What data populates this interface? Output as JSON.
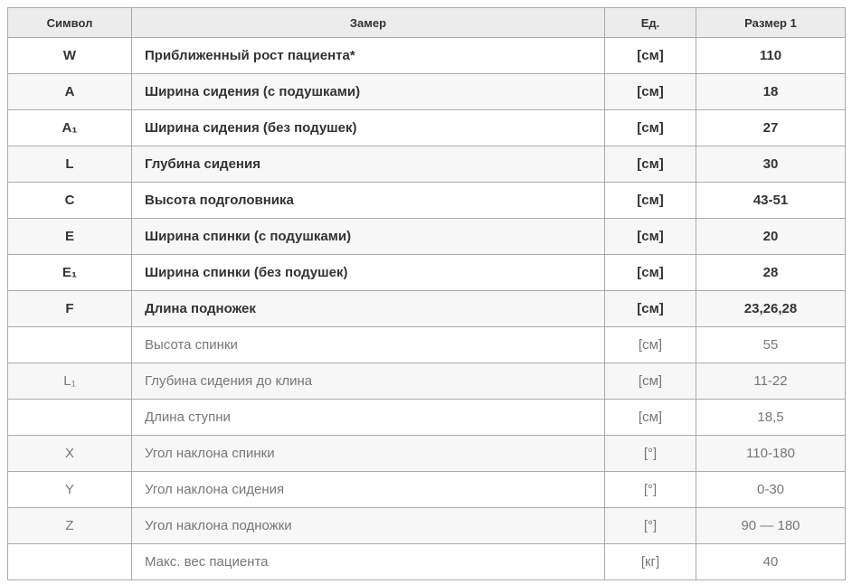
{
  "table": {
    "columns": [
      {
        "key": "symbol",
        "label": "Символ"
      },
      {
        "key": "measure",
        "label": "Замер"
      },
      {
        "key": "unit",
        "label": "Ед."
      },
      {
        "key": "size1",
        "label": "Размер 1"
      }
    ],
    "rows": [
      {
        "symbol": "W",
        "measure": "Приближенный  рост пациента*",
        "unit": "[см]",
        "size1": "110",
        "strong": true
      },
      {
        "symbol": "A",
        "measure": "Ширина сидения (с подушками)",
        "unit": "[см]",
        "size1": "18",
        "strong": true
      },
      {
        "symbol": "A₁",
        "measure": "Ширина сидения (без подушек)",
        "unit": "[см]",
        "size1": "27",
        "strong": true
      },
      {
        "symbol": "L",
        "measure": "Глубина сидения",
        "unit": "[см]",
        "size1": "30",
        "strong": true
      },
      {
        "symbol": "C",
        "measure": "Высота подголовника",
        "unit": "[см]",
        "size1": "43-51",
        "strong": true
      },
      {
        "symbol": "E",
        "measure": "Ширина спинки (с подушками)",
        "unit": "[см]",
        "size1": "20",
        "strong": true
      },
      {
        "symbol": "E₁",
        "measure": "Ширина спинки (без подушек)",
        "unit": "[см]",
        "size1": "28",
        "strong": true
      },
      {
        "symbol": "F",
        "measure": "Длина подножек",
        "unit": "[см]",
        "size1": "23,26,28",
        "strong": true
      },
      {
        "symbol": "",
        "measure": "Высота спинки",
        "unit": "[см]",
        "size1": "55",
        "strong": false
      },
      {
        "symbol": "L₁",
        "measure": "Глубина сидения до клина",
        "unit": "[см]",
        "size1": "11-22",
        "strong": false
      },
      {
        "symbol": "",
        "measure": "Длина ступни",
        "unit": "[см]",
        "size1": "18,5",
        "strong": false
      },
      {
        "symbol": "X",
        "measure": "Угол наклона спинки",
        "unit": "[°]",
        "size1": "110-180",
        "strong": false
      },
      {
        "symbol": "Y",
        "measure": "Угол наклона сидения",
        "unit": "[°]",
        "size1": "0-30",
        "strong": false
      },
      {
        "symbol": "Z",
        "measure": "Угол наклона подножки",
        "unit": "[°]",
        "size1": "90 — 180",
        "strong": false
      },
      {
        "symbol": "",
        "measure": "Макс. вес пациента",
        "unit": "[кг]",
        "size1": "40",
        "strong": false
      }
    ]
  }
}
